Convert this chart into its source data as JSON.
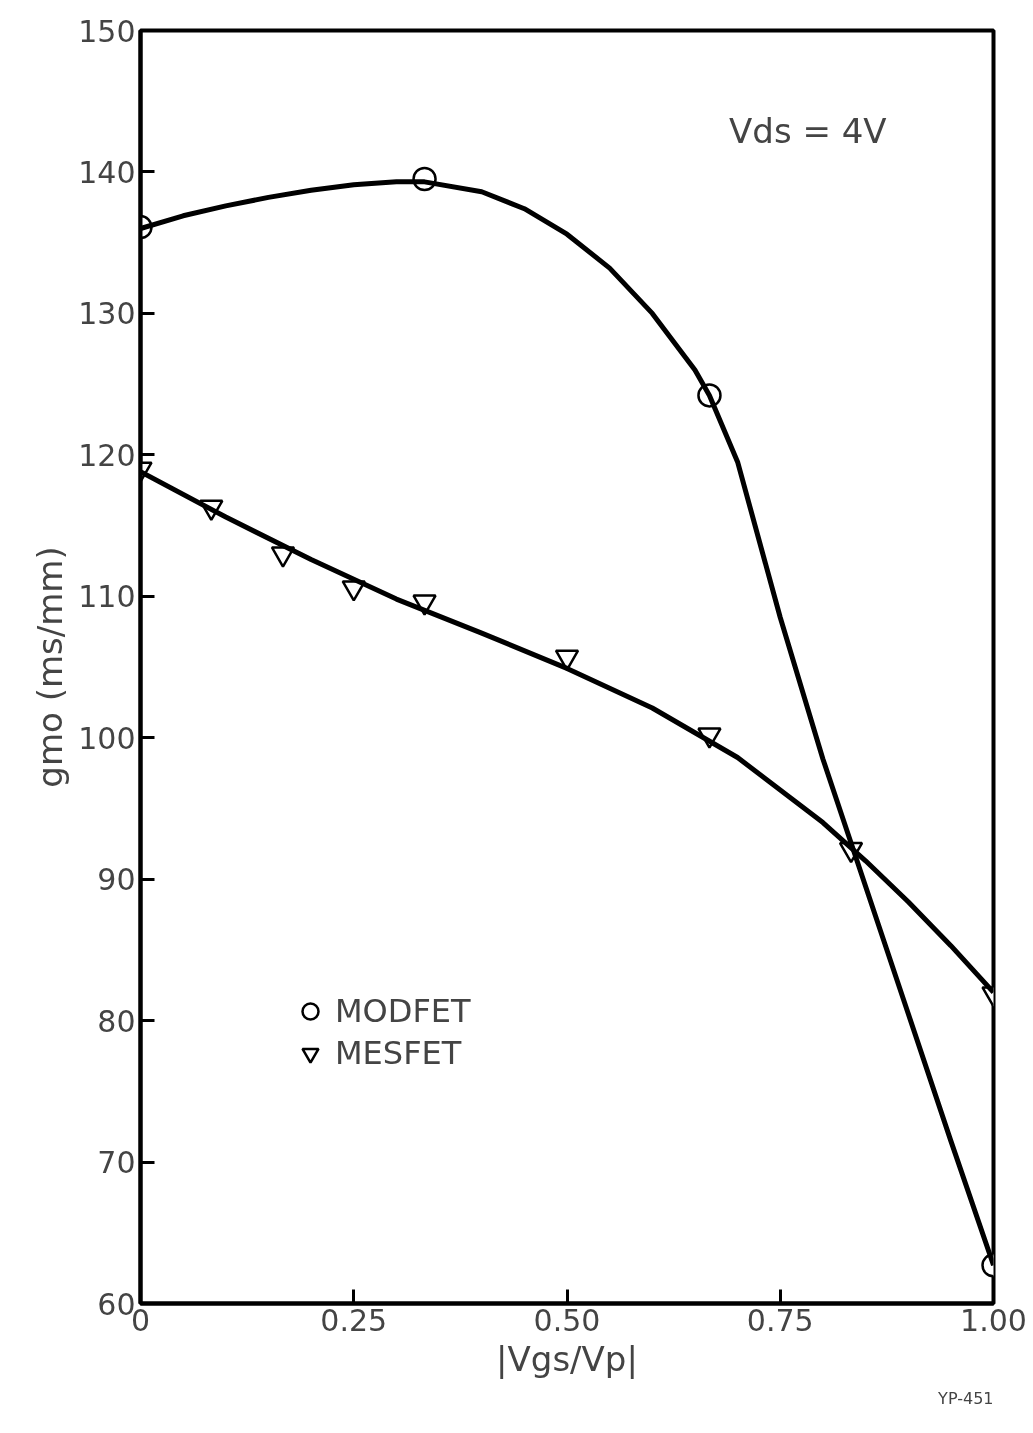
{
  "chart_data": {
    "type": "scatter",
    "xlabel": "|Vgs/Vp|",
    "ylabel": "gmo (ms/mm)",
    "xlim": [
      0,
      1.0
    ],
    "ylim": [
      60,
      150
    ],
    "xticks": [
      0,
      0.25,
      {
        "value": 0.5,
        "label": "0.50"
      },
      0.75,
      {
        "value": 1.0,
        "label": "1.00"
      }
    ],
    "yticks": [
      60,
      70,
      80,
      90,
      100,
      110,
      120,
      130,
      140,
      150
    ],
    "grid": false,
    "legend": "bottom left",
    "annotations": [
      "Vds = 4V",
      "YP-451"
    ],
    "series": [
      {
        "name": "MODFET",
        "marker": "circle",
        "color": "#000000",
        "x": [
          0,
          0.333,
          0.667,
          1.0
        ],
        "values": [
          136.1,
          139.5,
          124.2,
          62.7
        ]
      },
      {
        "name": "MESFET",
        "marker": "triangle",
        "color": "#000000",
        "x": [
          0,
          0.083,
          0.167,
          0.25,
          0.333,
          0.5,
          0.667,
          0.833,
          1.0
        ],
        "values": [
          119.0,
          116.3,
          113.0,
          110.6,
          109.6,
          105.7,
          100.2,
          92.1,
          81.9
        ]
      },
      {
        "type": "line",
        "color": "#000000",
        "line_style": "solid",
        "x": [
          0,
          0.05,
          0.1,
          0.15,
          0.2,
          0.25,
          0.3,
          0.333,
          0.4,
          0.45,
          0.5,
          0.55,
          0.6,
          0.65,
          0.667,
          0.7,
          0.75,
          0.8,
          0.85,
          0.9,
          0.95,
          1.0
        ],
        "values": [
          136.0,
          136.9,
          137.6,
          138.2,
          138.7,
          139.1,
          139.3,
          139.3,
          138.6,
          137.4,
          135.6,
          133.2,
          130.0,
          126.0,
          124.2,
          119.5,
          108.5,
          98.5,
          89.5,
          80.5,
          71.5,
          62.7
        ]
      },
      {
        "type": "line",
        "color": "#000000",
        "line_style": "solid",
        "x": [
          0,
          0.1,
          0.2,
          0.3,
          0.4,
          0.5,
          0.6,
          0.7,
          0.8,
          0.85,
          0.9,
          0.95,
          1.0
        ],
        "values": [
          118.8,
          115.6,
          112.6,
          109.8,
          107.4,
          104.9,
          102.1,
          98.6,
          94.0,
          91.3,
          88.4,
          85.3,
          82.0
        ]
      }
    ]
  }
}
